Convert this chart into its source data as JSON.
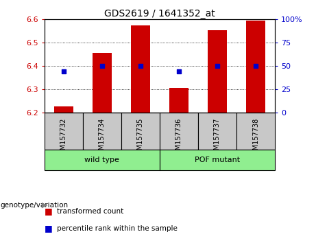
{
  "title": "GDS2619 / 1641352_at",
  "samples": [
    "GSM157732",
    "GSM157734",
    "GSM157735",
    "GSM157736",
    "GSM157737",
    "GSM157738"
  ],
  "bar_values": [
    6.225,
    6.455,
    6.575,
    6.305,
    6.555,
    6.595
  ],
  "bar_baseline": 6.2,
  "bar_color": "#cc0000",
  "percentile_values": [
    44,
    50,
    50,
    44,
    50,
    50
  ],
  "percentile_color": "#0000cc",
  "ylim_left": [
    6.2,
    6.6
  ],
  "ylim_right": [
    0,
    100
  ],
  "yticks_left": [
    6.2,
    6.3,
    6.4,
    6.5,
    6.6
  ],
  "yticks_right": [
    0,
    25,
    50,
    75,
    100
  ],
  "ytick_labels_right": [
    "0",
    "25",
    "50",
    "75",
    "100%"
  ],
  "groups": [
    {
      "label": "wild type",
      "indices": [
        0,
        1,
        2
      ]
    },
    {
      "label": "POF mutant",
      "indices": [
        3,
        4,
        5
      ]
    }
  ],
  "group_label": "genotype/variation",
  "group_color": "#90ee90",
  "legend_items": [
    {
      "label": "transformed count",
      "color": "#cc0000"
    },
    {
      "label": "percentile rank within the sample",
      "color": "#0000cc"
    }
  ],
  "sample_box_color": "#c8c8c8",
  "left_tick_color": "#cc0000",
  "right_tick_color": "#0000cc",
  "dotted_yticks": [
    25,
    50,
    75
  ]
}
